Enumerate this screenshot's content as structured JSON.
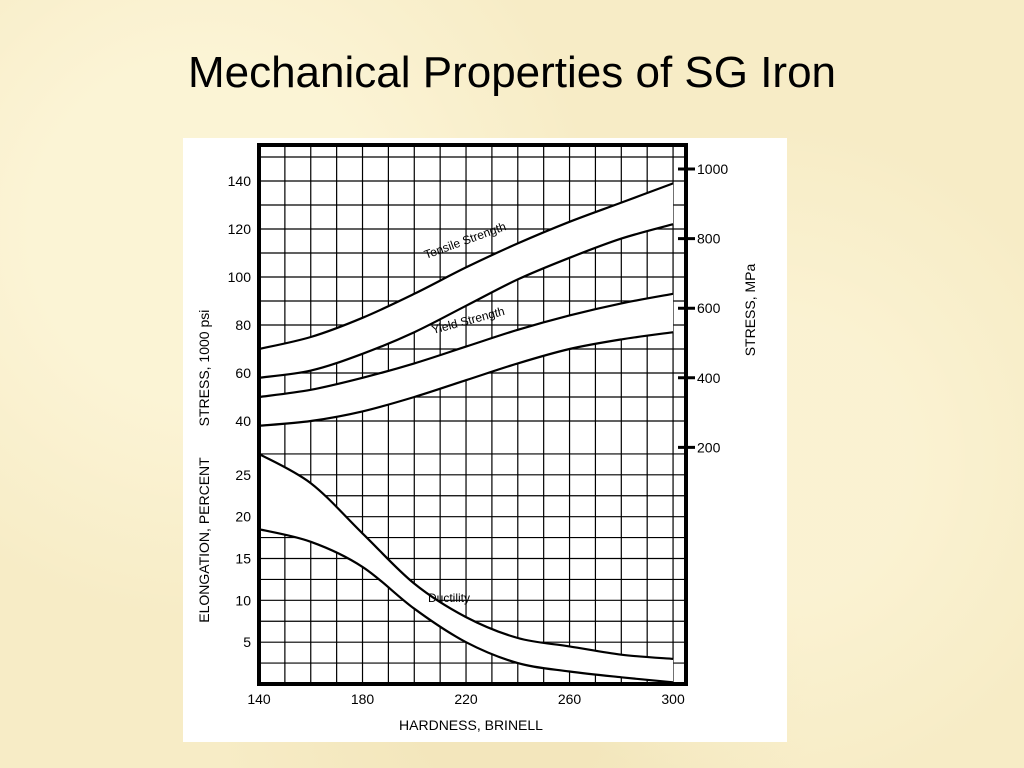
{
  "title": "Mechanical Properties of SG Iron",
  "chart_data": {
    "type": "line",
    "x": [
      140,
      160,
      180,
      200,
      220,
      240,
      260,
      280,
      300
    ],
    "xlim": [
      140,
      305
    ],
    "x_ticks": [
      "140",
      "180",
      "220",
      "260",
      "300"
    ],
    "xlabel": "HARDNESS, BRINELL",
    "stress_axis": {
      "label": "STRESS, 1000 psi",
      "ylim": [
        35,
        155
      ],
      "ticks": [
        "40",
        "60",
        "80",
        "100",
        "120",
        "140"
      ]
    },
    "stress_mpa_axis": {
      "label": "STRESS, MPa",
      "ticks": [
        {
          "label": "200",
          "psi": 29
        },
        {
          "label": "400",
          "psi": 58
        },
        {
          "label": "600",
          "psi": 87
        },
        {
          "label": "800",
          "psi": 116
        },
        {
          "label": "1000",
          "psi": 145
        }
      ]
    },
    "elongation_axis": {
      "label": "ELONGATION, PERCENT",
      "ylim": [
        0,
        30
      ],
      "ticks": [
        "5",
        "10",
        "15",
        "20",
        "25"
      ]
    },
    "series": [
      {
        "name": "Tensile Strength",
        "axis": "stress",
        "upper": [
          70,
          75,
          83,
          93,
          104,
          114,
          123,
          131,
          139
        ],
        "lower": [
          58,
          61,
          68,
          77,
          88,
          99,
          108,
          116,
          122
        ]
      },
      {
        "name": "Yield Strength",
        "axis": "stress",
        "upper": [
          50,
          53,
          58,
          64,
          71,
          78,
          84,
          89,
          93
        ],
        "lower": [
          38,
          40,
          44,
          50,
          57,
          64,
          70,
          74,
          77
        ]
      },
      {
        "name": "Ductility",
        "axis": "elongation",
        "upper": [
          27.5,
          24,
          18,
          12,
          8,
          5.5,
          4.5,
          3.5,
          3
        ],
        "lower": [
          18.5,
          17,
          14,
          9,
          5,
          2.5,
          1.5,
          0.8,
          0.2
        ]
      }
    ]
  }
}
